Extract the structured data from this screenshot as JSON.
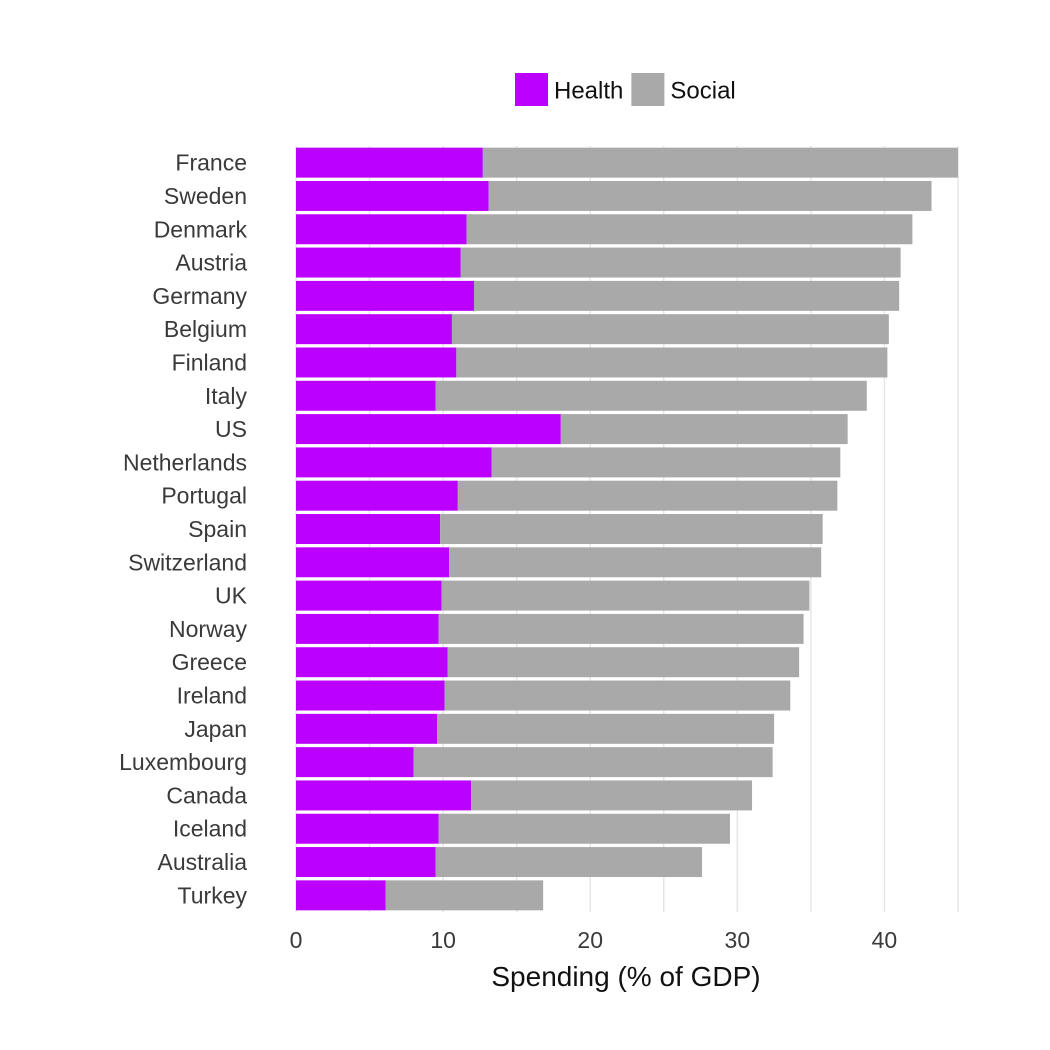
{
  "chart_data": {
    "type": "bar",
    "orientation": "horizontal",
    "stacked": true,
    "categories": [
      "France",
      "Sweden",
      "Denmark",
      "Austria",
      "Germany",
      "Belgium",
      "Finland",
      "Italy",
      "US",
      "Netherlands",
      "Portugal",
      "Spain",
      "Switzerland",
      "UK",
      "Norway",
      "Greece",
      "Ireland",
      "Japan",
      "Luxembourg",
      "Canada",
      "Iceland",
      "Australia",
      "Turkey"
    ],
    "series": [
      {
        "name": "Health",
        "color": "#bb00ff",
        "values": [
          12.7,
          13.1,
          11.6,
          11.2,
          12.1,
          10.6,
          10.9,
          9.5,
          18.0,
          13.3,
          11.0,
          9.8,
          10.4,
          9.9,
          9.7,
          10.3,
          10.1,
          9.6,
          8.0,
          11.9,
          9.7,
          9.5,
          6.1
        ]
      },
      {
        "name": "Social",
        "color": "#a9a9a9",
        "values": [
          32.3,
          30.1,
          30.3,
          29.9,
          28.9,
          29.7,
          29.3,
          29.3,
          19.5,
          23.7,
          25.8,
          26.0,
          25.3,
          25.0,
          24.8,
          23.9,
          23.5,
          22.9,
          24.4,
          19.1,
          19.8,
          18.1,
          10.7
        ]
      }
    ],
    "xlabel": "Spending (% of GDP)",
    "ylabel": "",
    "xlim": [
      0,
      45
    ],
    "xticks": [
      0,
      10,
      20,
      30,
      40
    ],
    "grid": true,
    "legend": "top"
  }
}
